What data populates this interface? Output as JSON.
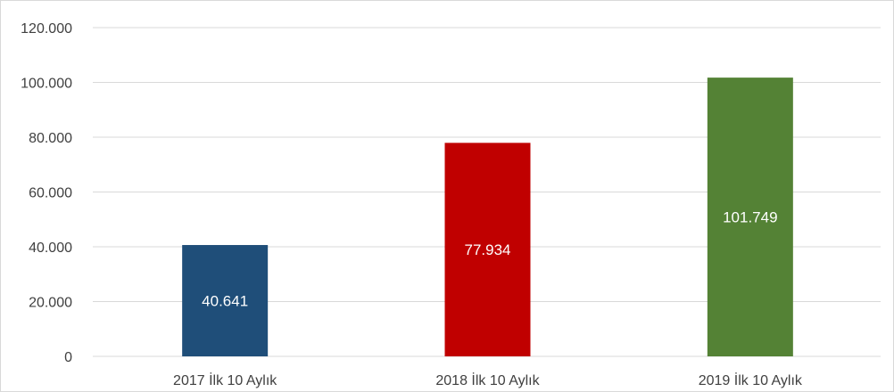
{
  "chart_data": {
    "type": "bar",
    "title": "",
    "xlabel": "",
    "ylabel": "",
    "categories": [
      "2017 İlk 10 Aylık",
      "2018 İlk 10 Aylık",
      "2019 İlk 10 Aylık"
    ],
    "values": [
      40641,
      77934,
      101749
    ],
    "value_labels": [
      "40.641",
      "77.934",
      "101.749"
    ],
    "bar_colors": [
      "#1f4e79",
      "#c00000",
      "#548235"
    ],
    "ylim": [
      0,
      120000
    ],
    "yticks": [
      0,
      20000,
      40000,
      60000,
      80000,
      100000,
      120000
    ],
    "ytick_labels": [
      "0",
      "20.000",
      "40.000",
      "60.000",
      "80.000",
      "100.000",
      "120.000"
    ],
    "grid": true,
    "gridline_color": "#d9d9d9",
    "legend": "none"
  }
}
